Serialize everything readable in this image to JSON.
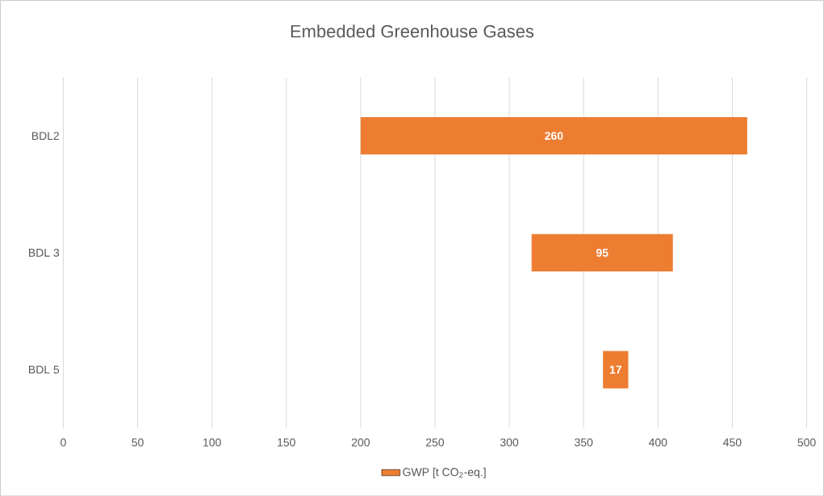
{
  "chart_data": {
    "type": "bar",
    "title": "Embedded Greenhouse Gases",
    "orientation": "horizontal",
    "categories": [
      "BDL2",
      "BDL 3",
      "BDL 5"
    ],
    "series": [
      {
        "name": "GWP [t CO$_{2}$-eq.]",
        "color": "#ed7d31",
        "values": [
          260,
          95,
          17
        ],
        "base": [
          200,
          315,
          363
        ]
      }
    ],
    "data_labels": true,
    "grid": "x",
    "legend": "bottom",
    "xlim": [
      0,
      500
    ],
    "xticks": [
      0,
      50,
      100,
      150,
      200,
      250,
      300,
      350,
      400,
      450,
      500
    ]
  }
}
